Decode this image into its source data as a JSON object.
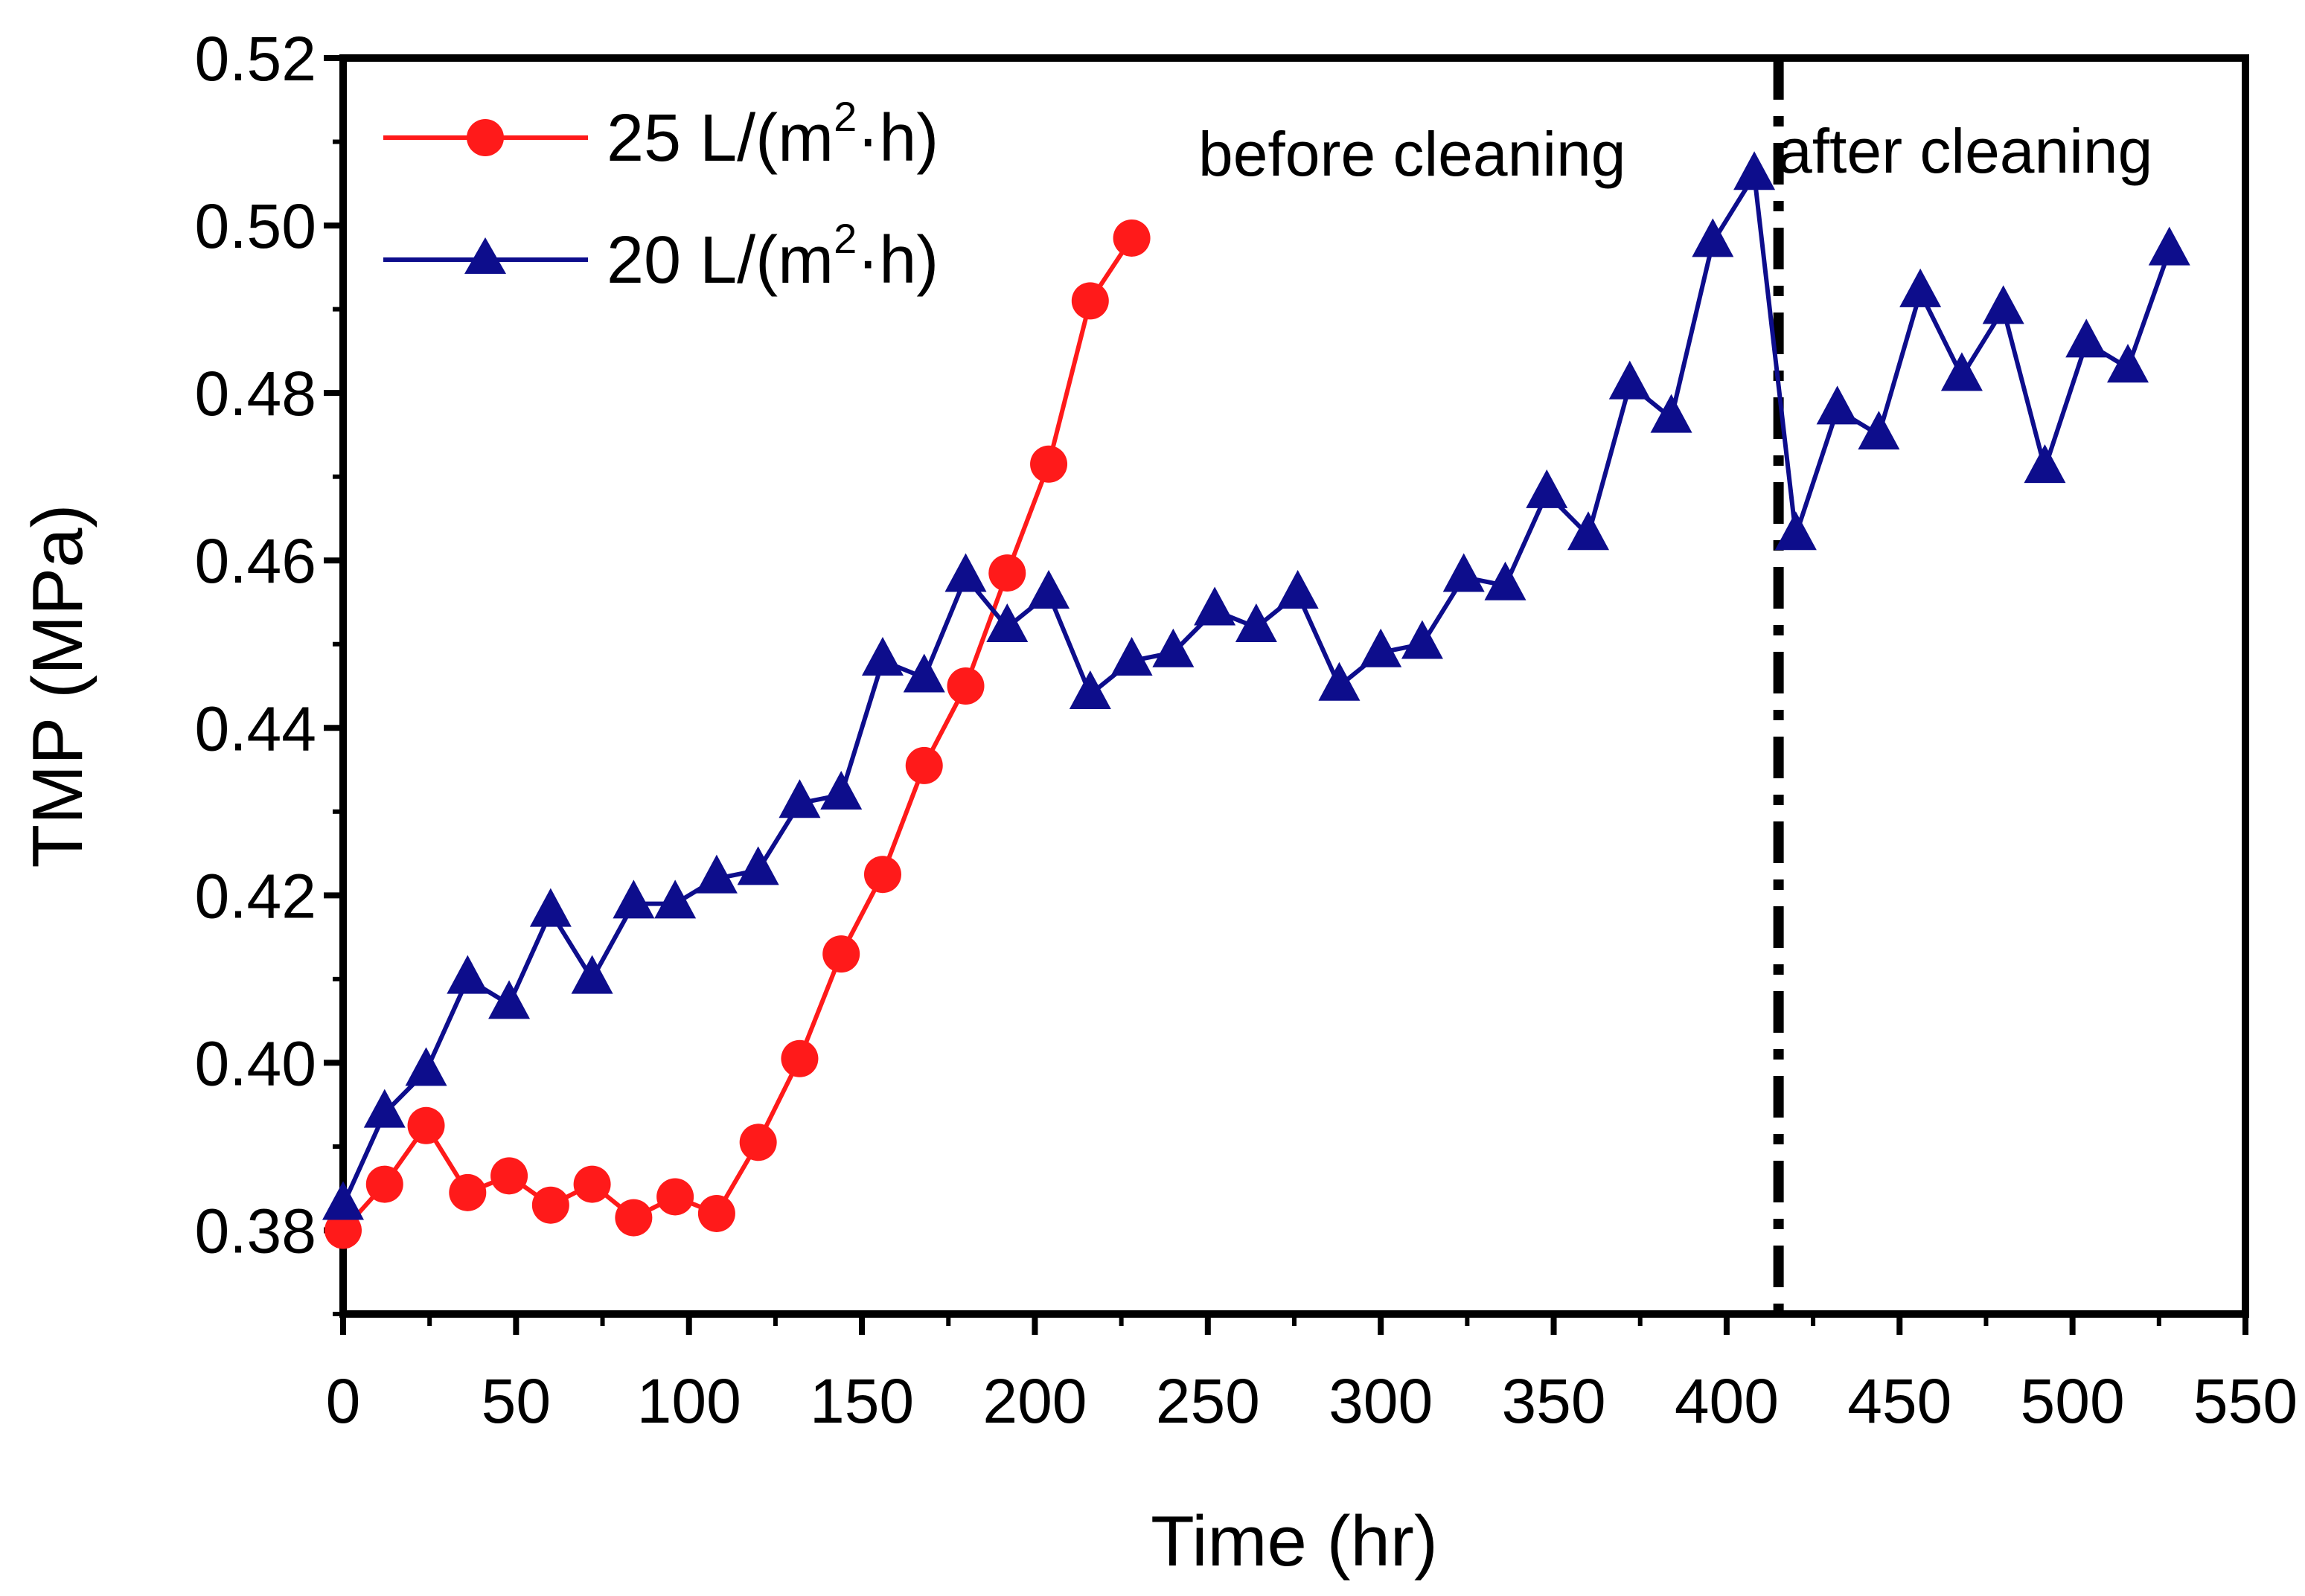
{
  "chart_data": {
    "type": "line",
    "title": "",
    "xlabel": "Time (hr)",
    "ylabel": "TMP (MPa)",
    "xlim": [
      0,
      550
    ],
    "ylim": [
      0.37,
      0.52
    ],
    "x_ticks": [
      0,
      50,
      100,
      150,
      200,
      250,
      300,
      350,
      400,
      450,
      500,
      550
    ],
    "x_tick_labels": [
      "0",
      "50",
      "100",
      "150",
      "200",
      "250",
      "300",
      "350",
      "400",
      "450",
      "500",
      "550"
    ],
    "y_ticks": [
      0.38,
      0.4,
      0.42,
      0.44,
      0.46,
      0.48,
      0.5,
      0.52
    ],
    "y_tick_labels": [
      "0.38",
      "0.40",
      "0.42",
      "0.44",
      "0.46",
      "0.48",
      "0.50",
      "0.52"
    ],
    "grid": false,
    "legend_position": "top-left",
    "series": [
      {
        "name": "25 L/(m²·h)",
        "legend_main": "25 L/(m",
        "legend_sup": "2",
        "legend_tail": "·h)",
        "color": "#ff1a1a",
        "marker": "circle",
        "x": [
          0,
          12,
          24,
          36,
          48,
          60,
          72,
          84,
          96,
          108,
          120,
          132,
          144,
          156,
          168,
          180,
          192,
          204,
          216,
          228
        ],
        "y": [
          0.38,
          0.3855,
          0.3925,
          0.3845,
          0.3865,
          0.383,
          0.3855,
          0.3815,
          0.384,
          0.382,
          0.3905,
          0.4005,
          0.413,
          0.4225,
          0.4355,
          0.445,
          0.4585,
          0.4715,
          0.491,
          0.4985
        ]
      },
      {
        "name": "20 L/(m²·h)",
        "legend_main": "20 L/(m",
        "legend_sup": "2",
        "legend_tail": "·h)",
        "color": "#0d0d8c",
        "marker": "triangle",
        "x": [
          0,
          12,
          24,
          36,
          48,
          60,
          72,
          84,
          96,
          108,
          120,
          132,
          144,
          156,
          168,
          180,
          192,
          204,
          216,
          228,
          240,
          252,
          264,
          276,
          288,
          300,
          312,
          324,
          336,
          348,
          360,
          372,
          384,
          396,
          408,
          420,
          432,
          444,
          456,
          468,
          480,
          492,
          504,
          516,
          528
        ],
        "y": [
          0.383,
          0.394,
          0.399,
          0.41,
          0.407,
          0.418,
          0.41,
          0.419,
          0.419,
          0.422,
          0.423,
          0.431,
          0.432,
          0.448,
          0.446,
          0.458,
          0.452,
          0.456,
          0.444,
          0.448,
          0.449,
          0.454,
          0.452,
          0.456,
          0.445,
          0.449,
          0.45,
          0.458,
          0.457,
          0.468,
          0.463,
          0.481,
          0.477,
          0.498,
          0.506,
          0.463,
          0.478,
          0.475,
          0.492,
          0.482,
          0.49,
          0.471,
          0.486,
          0.483,
          0.497
        ]
      }
    ],
    "annotations": {
      "cleaning_time": 415,
      "before_label": "before cleaning",
      "after_label": "after cleaning"
    }
  }
}
